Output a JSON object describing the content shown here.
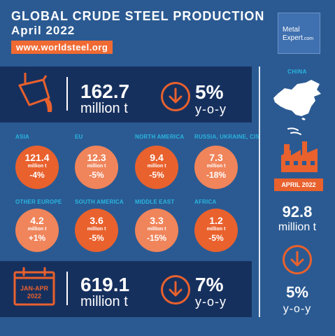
{
  "header": {
    "title_line1": "GLOBAL CRUDE STEEL PRODUCTION",
    "title_line2": "April 2022",
    "website": "www.worldsteel.org"
  },
  "logo": {
    "line1": "Metal",
    "line2": "Expert",
    "suffix": ".com"
  },
  "world_april": {
    "value": "162.7",
    "unit": "million t",
    "change": "5%",
    "change_label": "y-o-y",
    "icon": "arrow-down-circle-icon"
  },
  "regions": [
    {
      "name": "ASIA",
      "value": "121.4",
      "unit": "million t",
      "change": "-4%"
    },
    {
      "name": "EU",
      "value": "12.3",
      "unit": "million t",
      "change": "-5%"
    },
    {
      "name": "NORTH AMERICA",
      "value": "9.4",
      "unit": "million t",
      "change": "-5%"
    },
    {
      "name": "RUSSIA, UKRAINE, CIS",
      "value": "7.3",
      "unit": "million t",
      "change": "-18%"
    },
    {
      "name": "OTHER EUROPE",
      "value": "4.2",
      "unit": "million t",
      "change": "+1%"
    },
    {
      "name": "SOUTH AMERICA",
      "value": "3.6",
      "unit": "million t",
      "change": "-5%"
    },
    {
      "name": "MIDDLE EAST",
      "value": "3.3",
      "unit": "million t",
      "change": "-15%"
    },
    {
      "name": "AFRICA",
      "value": "1.2",
      "unit": "million t",
      "change": "-5%"
    }
  ],
  "ytd": {
    "badge": "JAN-APR 2022",
    "badge_line1": "JAN-APR",
    "badge_line2": "2022",
    "value": "619.1",
    "unit": "million t",
    "change": "7%",
    "change_label": "y-o-y"
  },
  "china": {
    "label": "CHINA",
    "badge": "APRIL 2022",
    "value": "92.8",
    "unit": "million t",
    "change": "5%",
    "change_label": "y-o-y"
  },
  "colors": {
    "background": "#2b5a92",
    "panel": "#16305e",
    "accent": "#e9612d",
    "accent_light": "#f0845a",
    "label_cyan": "#29b6e0"
  }
}
